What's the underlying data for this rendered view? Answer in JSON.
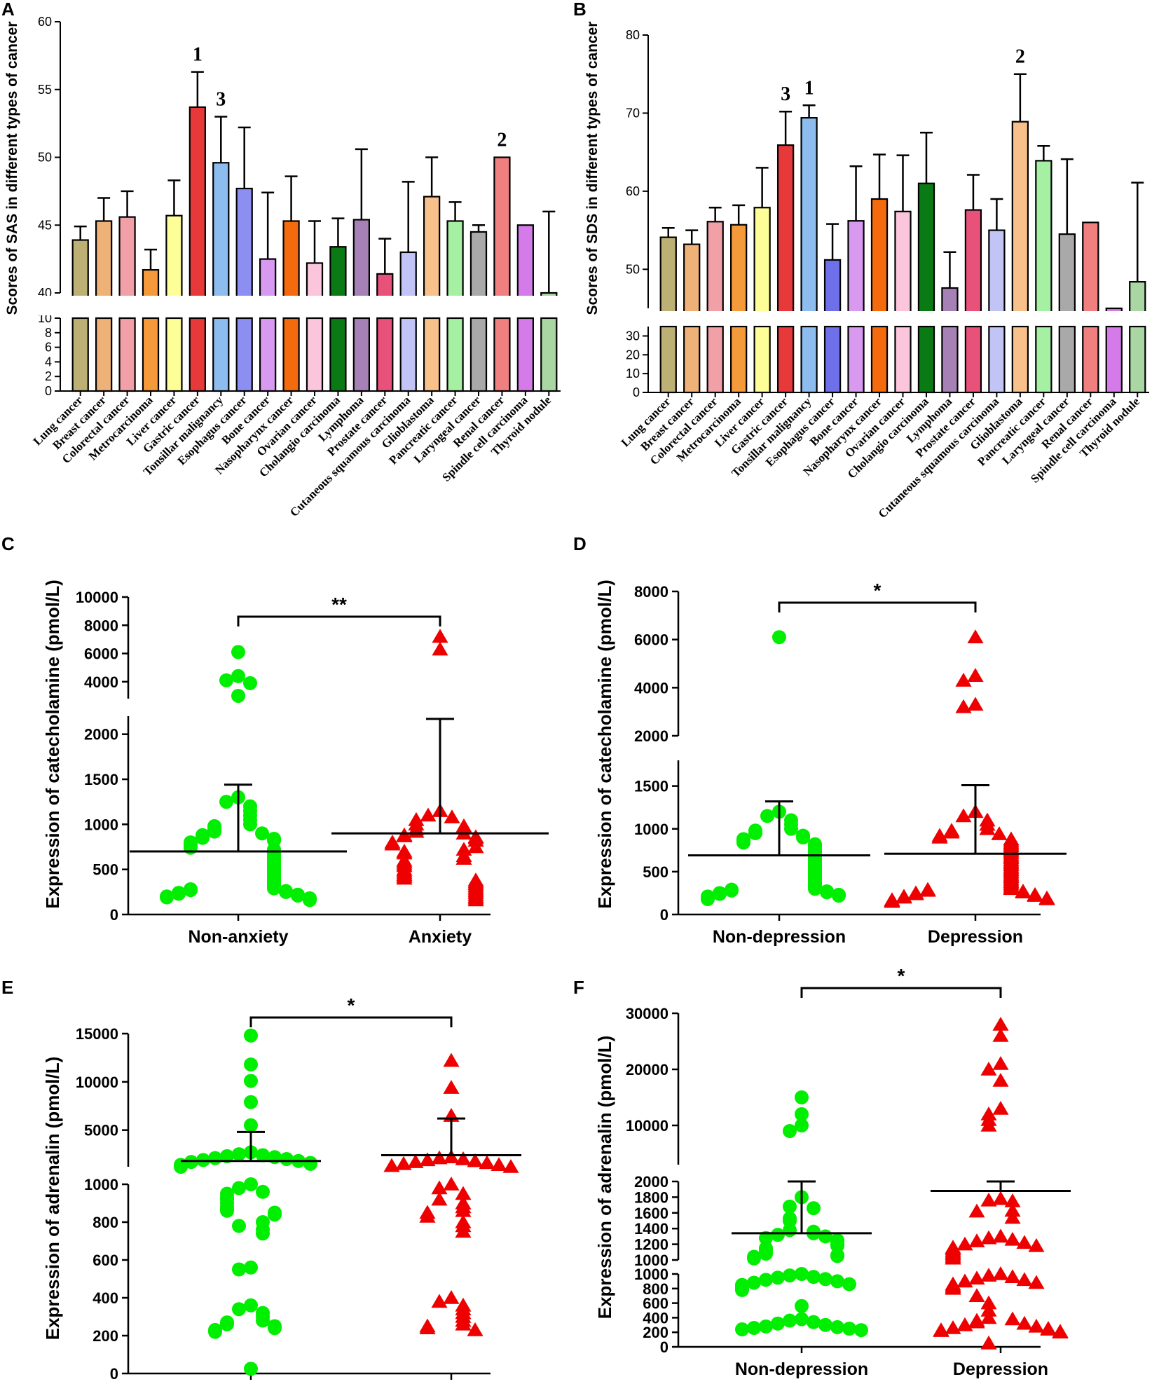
{
  "chart_data": [
    {
      "panel": "A",
      "type": "bar",
      "ylabel": "Scores of SAS in different types of cancer",
      "categories": [
        "Lung cancer",
        "Breast cancer",
        "Colorectal cancer",
        "Metrocarcinoma",
        "Liver cancer",
        "Gastric cancer",
        "Tonsillar malignancy",
        "Esophagus cancer",
        "Bone cancer",
        "Nasopharynx cancer",
        "Ovarian cancer",
        "Cholangio carcinoma",
        "Lymphoma",
        "Prostate cancer",
        "Cutaneous squamous carcinoma",
        "Glioblastoma",
        "Pancreatic cancer",
        "Laryngeal cancer",
        "Renal cancer",
        "Spindle cell carcinoma",
        "Thyroid nodule"
      ],
      "values": [
        43.9,
        45.3,
        45.6,
        41.7,
        45.7,
        53.7,
        49.6,
        47.7,
        42.5,
        45.3,
        42.2,
        43.4,
        45.4,
        41.4,
        43.0,
        47.1,
        45.3,
        44.5,
        50.0,
        45.0,
        39.9
      ],
      "errors": [
        1.0,
        1.7,
        1.9,
        1.5,
        2.6,
        2.6,
        3.4,
        4.5,
        4.9,
        3.3,
        3.1,
        2.1,
        5.2,
        2.6,
        5.2,
        2.9,
        1.4,
        0.5,
        0,
        0,
        6.1
      ],
      "colors": [
        "#bcb075",
        "#eeb177",
        "#f2a0a7",
        "#f59a3b",
        "#fefe98",
        "#e8393a",
        "#8dbcef",
        "#8c8ef1",
        "#d89af0",
        "#f46b0e",
        "#fbc5dc",
        "#0a7a15",
        "#a681b6",
        "#e8527a",
        "#c3c4f6",
        "#f8c08a",
        "#a6f0a4",
        "#a9a9a9",
        "#f08080",
        "#d57be9",
        "#a9d6a3"
      ],
      "upper_axis": {
        "ylim": [
          40,
          60
        ],
        "ticks": [
          40,
          45,
          50,
          55,
          60
        ]
      },
      "lower_axis": {
        "ylim": [
          0,
          10
        ],
        "ticks": [
          0,
          2,
          4,
          6,
          8,
          10
        ]
      },
      "rank_labels": [
        {
          "label": "1",
          "category": "Gastric cancer"
        },
        {
          "label": "3",
          "category": "Tonsillar malignancy"
        },
        {
          "label": "2",
          "category": "Renal cancer"
        }
      ]
    },
    {
      "panel": "B",
      "type": "bar",
      "ylabel": "Scores of SDS in different types of cancer",
      "categories": [
        "Lung cancer",
        "Breast cancer",
        "Colorectal cancer",
        "Metrocarcinoma",
        "Liver cancer",
        "Gastric cancer",
        "Tonsillar malignancy",
        "Esophagus cancer",
        "Bone cancer",
        "Nasopharynx cancer",
        "Ovarian cancer",
        "Cholangio carcinoma",
        "Lymphoma",
        "Prostate cancer",
        "Cutaneous squamous carcinoma",
        "Glioblastoma",
        "Pancreatic cancer",
        "Laryngeal cancer",
        "Renal cancer",
        "Spindle cell carcinoma",
        "Thyroid nodule"
      ],
      "values": [
        54.1,
        53.2,
        56.1,
        55.7,
        57.9,
        65.9,
        69.4,
        51.2,
        56.2,
        59.0,
        57.4,
        61.0,
        47.6,
        57.6,
        55.0,
        68.9,
        63.9,
        54.5,
        56.0,
        45.0,
        48.4
      ],
      "errors": [
        1.2,
        1.8,
        1.8,
        2.5,
        5.1,
        4.3,
        1.6,
        4.6,
        7.0,
        5.7,
        7.2,
        6.5,
        4.6,
        4.5,
        4.0,
        6.1,
        1.9,
        9.6,
        0,
        0,
        12.7
      ],
      "colors": [
        "#bcb075",
        "#eeb177",
        "#f2a0a7",
        "#f59a3b",
        "#fefe98",
        "#e8393a",
        "#8dbcef",
        "#6e70ea",
        "#d89af0",
        "#f46b0e",
        "#fbc5dc",
        "#0a7a15",
        "#a681b6",
        "#e8527a",
        "#c3c4f6",
        "#f8c08a",
        "#a6f0a4",
        "#a9a9a9",
        "#f08080",
        "#d57be9",
        "#a9d6a3"
      ],
      "upper_axis": {
        "ylim": [
          45,
          80
        ],
        "ticks": [
          50,
          60,
          70,
          80
        ]
      },
      "lower_axis": {
        "ylim": [
          0,
          35
        ],
        "ticks": [
          0,
          10,
          20,
          30
        ]
      },
      "rank_labels": [
        {
          "label": "3",
          "category": "Gastric cancer"
        },
        {
          "label": "1",
          "category": "Tonsillar malignancy"
        },
        {
          "label": "2",
          "category": "Glioblastoma"
        }
      ]
    },
    {
      "panel": "C",
      "type": "scatter",
      "ylabel": "Expression of catecholamine (pmol/L)",
      "groups": [
        "Non-anxiety",
        "Anxiety"
      ],
      "markers": [
        "circle",
        "triangle"
      ],
      "colors": [
        "#00ee00",
        "#ee0000"
      ],
      "means": [
        700,
        900
      ],
      "error_upper": [
        1440,
        2170
      ],
      "significance": "**",
      "lower_axis": {
        "ylim": [
          0,
          2200
        ],
        "ticks": [
          0,
          500,
          1000,
          1500,
          2000
        ]
      },
      "upper_axis": {
        "ylim": [
          2800,
          10000
        ],
        "ticks": [
          4000,
          6000,
          8000,
          10000
        ]
      },
      "points": [
        [
          6100,
          4400,
          4100,
          3900,
          3000,
          1300,
          1250,
          1200,
          1150,
          1100,
          1050,
          1000,
          980,
          950,
          920,
          900,
          880,
          860,
          850,
          840,
          820,
          800,
          780,
          760,
          740,
          720,
          700,
          680,
          660,
          640,
          620,
          600,
          580,
          560,
          540,
          520,
          500,
          480,
          460,
          440,
          420,
          400,
          380,
          360,
          340,
          320,
          300,
          290,
          280,
          270,
          260,
          250,
          240,
          230,
          220,
          210,
          200,
          190,
          180,
          170,
          160
        ],
        [
          7200,
          6300,
          1150,
          1100,
          1080,
          1050,
          1000,
          980,
          950,
          920,
          900,
          880,
          870,
          860,
          850,
          820,
          800,
          780,
          750,
          720,
          700,
          680,
          650,
          620,
          600,
          580,
          560,
          540,
          500,
          480,
          460,
          440,
          420,
          400,
          380,
          360,
          340,
          320,
          300,
          280,
          260,
          240,
          220,
          200,
          180,
          160
        ]
      ]
    },
    {
      "panel": "D",
      "type": "scatter",
      "ylabel": "Expression of catecholamine (pmol/L)",
      "groups": [
        "Non-depression",
        "Depression"
      ],
      "markers": [
        "circle",
        "triangle"
      ],
      "colors": [
        "#00ee00",
        "#ee0000"
      ],
      "means": [
        690,
        710
      ],
      "error_upper": [
        1320,
        1510
      ],
      "significance": "*",
      "lower_axis": {
        "ylim": [
          0,
          1800
        ],
        "ticks": [
          0,
          500,
          1000,
          1500
        ]
      },
      "upper_axis": {
        "ylim": [
          2000,
          8000
        ],
        "ticks": [
          2000,
          4000,
          6000,
          8000
        ]
      },
      "points": [
        [
          6100,
          1200,
          1150,
          1100,
          1050,
          1000,
          980,
          950,
          920,
          900,
          880,
          860,
          840,
          820,
          800,
          780,
          760,
          740,
          720,
          700,
          680,
          660,
          640,
          620,
          600,
          580,
          560,
          540,
          520,
          500,
          480,
          460,
          440,
          420,
          400,
          380,
          360,
          340,
          320,
          300,
          290,
          280,
          270,
          260,
          250,
          240,
          230,
          220,
          210,
          200,
          180
        ],
        [
          6100,
          4500,
          4300,
          3300,
          3200,
          1200,
          1150,
          1100,
          1050,
          1000,
          980,
          960,
          940,
          920,
          900,
          880,
          860,
          840,
          820,
          800,
          780,
          760,
          740,
          720,
          700,
          680,
          660,
          640,
          620,
          600,
          580,
          560,
          540,
          520,
          500,
          480,
          460,
          440,
          420,
          400,
          380,
          360,
          340,
          320,
          300,
          290,
          280,
          270,
          260,
          250,
          240,
          230,
          220,
          210,
          200,
          190,
          180,
          170,
          160,
          150
        ]
      ]
    },
    {
      "panel": "E",
      "type": "scatter",
      "ylabel": "Expression of adrenalin (pmol/L)",
      "groups": [
        "Non-anxiety",
        "Anxiety"
      ],
      "markers": [
        "circle",
        "triangle"
      ],
      "colors": [
        "#00ee00",
        "#ee0000"
      ],
      "means": [
        1800,
        2400
      ],
      "error_upper": [
        4800,
        6200
      ],
      "significance": "*",
      "lower_axis": {
        "ylim": [
          0,
          1000
        ],
        "ticks": [
          0,
          200,
          400,
          600,
          800,
          1000
        ]
      },
      "upper_axis": {
        "ylim": [
          1200,
          15000
        ],
        "ticks": [
          5000,
          10000,
          15000
        ]
      },
      "points": [
        [
          14800,
          11800,
          10100,
          7900,
          5500,
          2700,
          2500,
          2400,
          2300,
          2200,
          2100,
          2000,
          1900,
          1800,
          1700,
          1600,
          1500,
          1400,
          1300,
          1200,
          1000,
          980,
          960,
          950,
          930,
          920,
          900,
          880,
          870,
          860,
          850,
          840,
          800,
          780,
          760,
          740,
          560,
          550,
          360,
          340,
          320,
          300,
          280,
          270,
          260,
          250,
          240,
          230,
          220,
          25
        ],
        [
          12200,
          9400,
          6500,
          2200,
          2100,
          2000,
          1900,
          1800,
          1700,
          1600,
          1500,
          1400,
          1300,
          1200,
          1000,
          980,
          950,
          920,
          900,
          880,
          860,
          850,
          830,
          800,
          780,
          750,
          400,
          380,
          360,
          340,
          320,
          300,
          280,
          260,
          250,
          240,
          230
        ]
      ]
    },
    {
      "panel": "F",
      "type": "scatter",
      "ylabel": "Expression of adrenalin (pmol/L)",
      "groups": [
        "Non-depression",
        "Depression"
      ],
      "markers": [
        "circle",
        "triangle"
      ],
      "colors": [
        "#00ee00",
        "#ee0000"
      ],
      "means": [
        1340,
        1880
      ],
      "error_upper": [
        2000,
        2000
      ],
      "significance": "*",
      "lower_axis": {
        "ylim": [
          0,
          1000
        ],
        "ticks": [
          0,
          200,
          400,
          600,
          800,
          1000
        ]
      },
      "middle_axis": {
        "ylim": [
          1000,
          2000
        ],
        "ticks": [
          1000,
          1200,
          1400,
          1600,
          1800,
          2000
        ]
      },
      "upper_axis": {
        "ylim": [
          3000,
          30000
        ],
        "ticks": [
          10000,
          20000,
          30000
        ]
      },
      "points": [
        [
          15000,
          12000,
          10000,
          9000,
          1800,
          1680,
          1660,
          1530,
          1500,
          1380,
          1360,
          1340,
          1320,
          1300,
          1280,
          1250,
          1230,
          1200,
          1180,
          1150,
          1130,
          1100,
          1080,
          1060,
          1050,
          1040,
          1020,
          1000,
          980,
          960,
          950,
          930,
          920,
          900,
          880,
          860,
          850,
          830,
          820,
          800,
          780,
          560,
          380,
          360,
          340,
          320,
          300,
          280,
          270,
          260,
          250,
          240,
          230
        ],
        [
          28000,
          26000,
          21000,
          20000,
          18000,
          13000,
          12000,
          11000,
          10000,
          1780,
          1760,
          1750,
          1630,
          1620,
          1540,
          1300,
          1280,
          1260,
          1240,
          1220,
          1200,
          1180,
          1160,
          1140,
          1120,
          1100,
          1080,
          1060,
          1040,
          1020,
          1000,
          980,
          960,
          940,
          920,
          900,
          880,
          860,
          840,
          820,
          800,
          700,
          600,
          500,
          400,
          380,
          360,
          340,
          320,
          300,
          280,
          260,
          250,
          240,
          230,
          220,
          210,
          200,
          50
        ]
      ]
    }
  ]
}
